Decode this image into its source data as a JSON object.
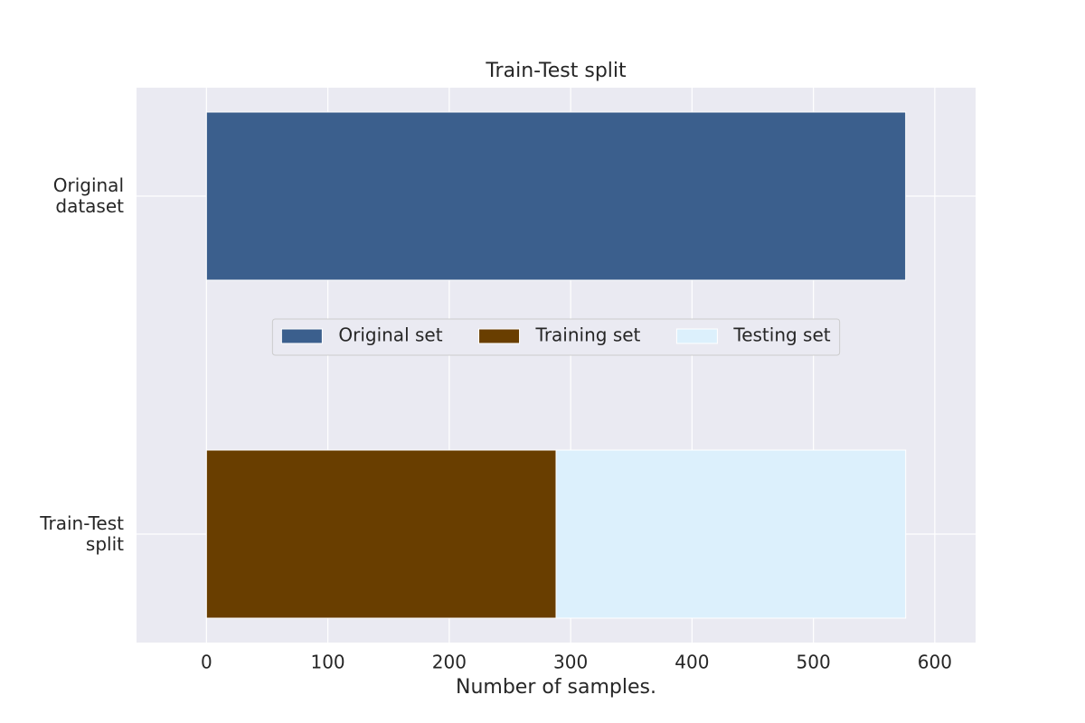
{
  "chart_data": {
    "type": "barh_stacked",
    "title": "Train-Test split",
    "x_label": "Number of samples.",
    "categories": [
      "Original\ndataset",
      "Train-Test\nsplit"
    ],
    "series": [
      {
        "name": "Original set",
        "color": "#3b5f8d",
        "values": [
          576,
          null
        ]
      },
      {
        "name": "Training set",
        "color": "#693e00",
        "values": [
          null,
          288
        ]
      },
      {
        "name": "Testing set",
        "color": "#dcf0fc",
        "values": [
          null,
          288
        ]
      }
    ],
    "xlim": [
      -57.6,
      633.6
    ],
    "xticks": [
      0,
      100,
      200,
      300,
      400,
      500,
      600
    ],
    "grid": true,
    "legend_position": "center"
  }
}
